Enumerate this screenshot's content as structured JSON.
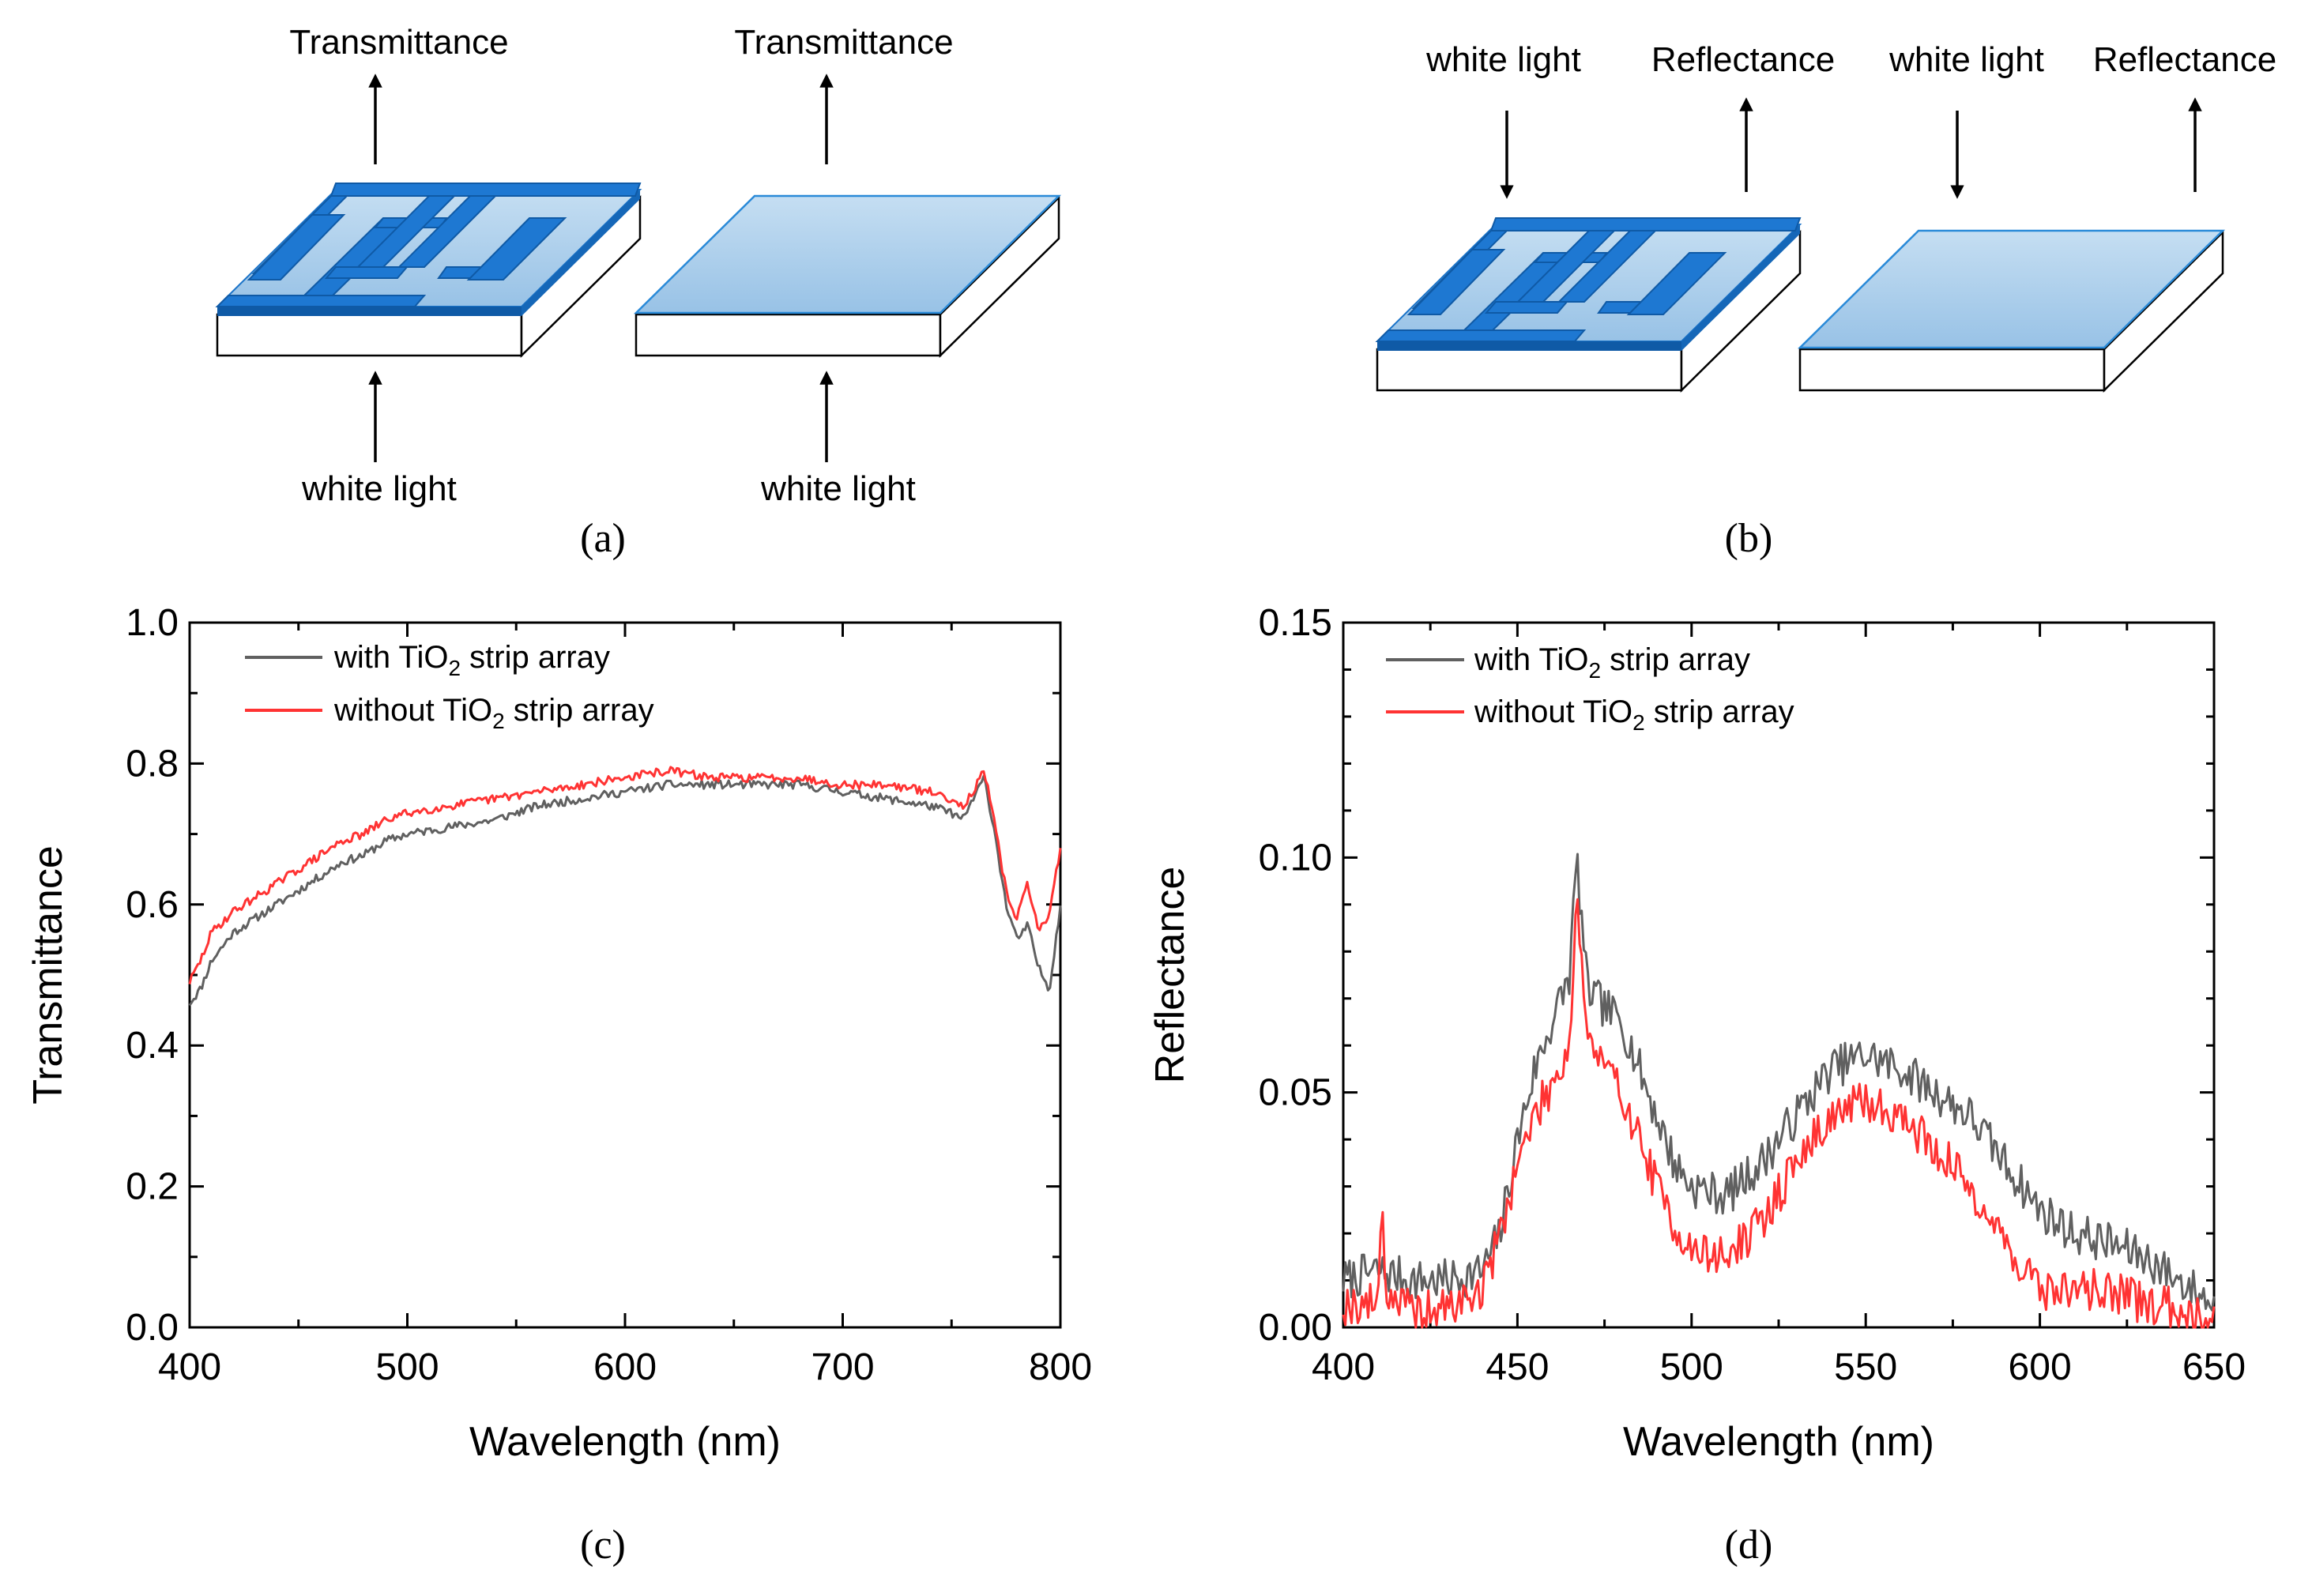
{
  "colors": {
    "with_strip": "#606060",
    "without_strip": "#ff3333",
    "film_blue": "#a9cdec",
    "strip_blue": "#1e78d2"
  },
  "panel_a": {
    "caption": "(a)",
    "devices": [
      {
        "variant": "with TiO2 strip array",
        "top_label": "Transmittance",
        "bottom_label": "white light"
      },
      {
        "variant": "without TiO2 strip array",
        "top_label": "Transmittance",
        "bottom_label": "white light"
      }
    ]
  },
  "panel_b": {
    "caption": "(b)",
    "devices": [
      {
        "variant": "with TiO2 strip array",
        "incident_label": "white light",
        "reflect_label": "Reflectance"
      },
      {
        "variant": "without TiO2 strip array",
        "incident_label": "white light",
        "reflect_label": "Reflectance"
      }
    ]
  },
  "chart_data": [
    {
      "type": "line",
      "panel": "(c)",
      "caption": "(c)",
      "xlabel": "Wavelength (nm)",
      "ylabel": "Transmittance",
      "xlim": [
        400,
        800
      ],
      "ylim": [
        0.0,
        1.0
      ],
      "xticks": [
        "400",
        "500",
        "600",
        "700",
        "800"
      ],
      "yticks": [
        "0.0",
        "0.2",
        "0.4",
        "0.6",
        "0.8",
        "1.0"
      ],
      "noise": 0.006,
      "series": [
        {
          "name": "with TiO2 strip array",
          "legend_main": "with TiO",
          "legend_sub": "2",
          "legend_rest": " strip array",
          "color": "#606060",
          "seed": 11,
          "x": [
            400,
            405,
            410,
            420,
            430,
            440,
            450,
            460,
            470,
            480,
            490,
            500,
            520,
            540,
            560,
            580,
            600,
            620,
            640,
            660,
            680,
            700,
            720,
            740,
            750,
            755,
            760,
            765,
            770,
            775,
            780,
            785,
            790,
            795,
            800
          ],
          "y": [
            0.46,
            0.48,
            0.52,
            0.56,
            0.58,
            0.6,
            0.62,
            0.64,
            0.66,
            0.67,
            0.69,
            0.7,
            0.71,
            0.72,
            0.74,
            0.75,
            0.76,
            0.77,
            0.77,
            0.77,
            0.77,
            0.76,
            0.75,
            0.74,
            0.73,
            0.72,
            0.75,
            0.78,
            0.7,
            0.6,
            0.55,
            0.57,
            0.51,
            0.48,
            0.6
          ]
        },
        {
          "name": "without TiO2 strip array",
          "legend_main": "without TiO",
          "legend_sub": "2",
          "legend_rest": " strip array",
          "color": "#ff3333",
          "seed": 29,
          "x": [
            400,
            405,
            410,
            420,
            430,
            440,
            450,
            460,
            470,
            480,
            490,
            500,
            520,
            540,
            560,
            580,
            600,
            620,
            640,
            660,
            680,
            700,
            720,
            740,
            750,
            755,
            760,
            765,
            770,
            775,
            780,
            785,
            790,
            795,
            800
          ],
          "y": [
            0.49,
            0.52,
            0.56,
            0.59,
            0.61,
            0.63,
            0.65,
            0.67,
            0.69,
            0.7,
            0.72,
            0.73,
            0.74,
            0.75,
            0.76,
            0.77,
            0.78,
            0.79,
            0.78,
            0.78,
            0.78,
            0.77,
            0.77,
            0.76,
            0.75,
            0.74,
            0.76,
            0.79,
            0.71,
            0.62,
            0.58,
            0.63,
            0.56,
            0.59,
            0.68
          ]
        }
      ]
    },
    {
      "type": "line",
      "panel": "(d)",
      "caption": "(d)",
      "xlabel": "Wavelength (nm)",
      "ylabel": "Reflectance",
      "xlim": [
        400,
        650
      ],
      "ylim": [
        0.0,
        0.15
      ],
      "xticks": [
        "400",
        "450",
        "500",
        "550",
        "600",
        "650"
      ],
      "yticks": [
        "0.00",
        "0.05",
        "0.10",
        "0.15"
      ],
      "noise": 0.0045,
      "series": [
        {
          "name": "with TiO2 strip array",
          "legend_main": "with TiO",
          "legend_sub": "2",
          "legend_rest": " strip array",
          "color": "#606060",
          "seed": 7,
          "x": [
            400,
            410,
            420,
            430,
            440,
            445,
            450,
            455,
            460,
            465,
            467,
            470,
            475,
            480,
            485,
            490,
            495,
            500,
            510,
            520,
            530,
            540,
            550,
            560,
            570,
            580,
            590,
            600,
            610,
            620,
            630,
            640,
            650
          ],
          "y": [
            0.01,
            0.012,
            0.01,
            0.01,
            0.012,
            0.02,
            0.04,
            0.055,
            0.065,
            0.075,
            0.1,
            0.072,
            0.068,
            0.065,
            0.055,
            0.045,
            0.035,
            0.03,
            0.028,
            0.035,
            0.045,
            0.055,
            0.058,
            0.055,
            0.05,
            0.045,
            0.035,
            0.025,
            0.02,
            0.018,
            0.015,
            0.01,
            0.005
          ]
        },
        {
          "name": "without TiO2 strip array",
          "legend_main": "without TiO",
          "legend_sub": "2",
          "legend_rest": " strip array",
          "color": "#ff3333",
          "seed": 19,
          "x": [
            400,
            410,
            411,
            412,
            420,
            430,
            440,
            445,
            450,
            455,
            460,
            465,
            467,
            470,
            475,
            480,
            485,
            490,
            495,
            500,
            510,
            520,
            530,
            540,
            550,
            560,
            570,
            580,
            590,
            600,
            610,
            620,
            630,
            640,
            650
          ],
          "y": [
            0.005,
            0.005,
            0.032,
            0.008,
            0.003,
            0.004,
            0.008,
            0.02,
            0.035,
            0.045,
            0.052,
            0.06,
            0.093,
            0.062,
            0.055,
            0.05,
            0.04,
            0.03,
            0.022,
            0.016,
            0.015,
            0.022,
            0.035,
            0.045,
            0.048,
            0.045,
            0.038,
            0.03,
            0.018,
            0.008,
            0.008,
            0.008,
            0.005,
            0.004,
            0.002
          ]
        }
      ]
    }
  ]
}
